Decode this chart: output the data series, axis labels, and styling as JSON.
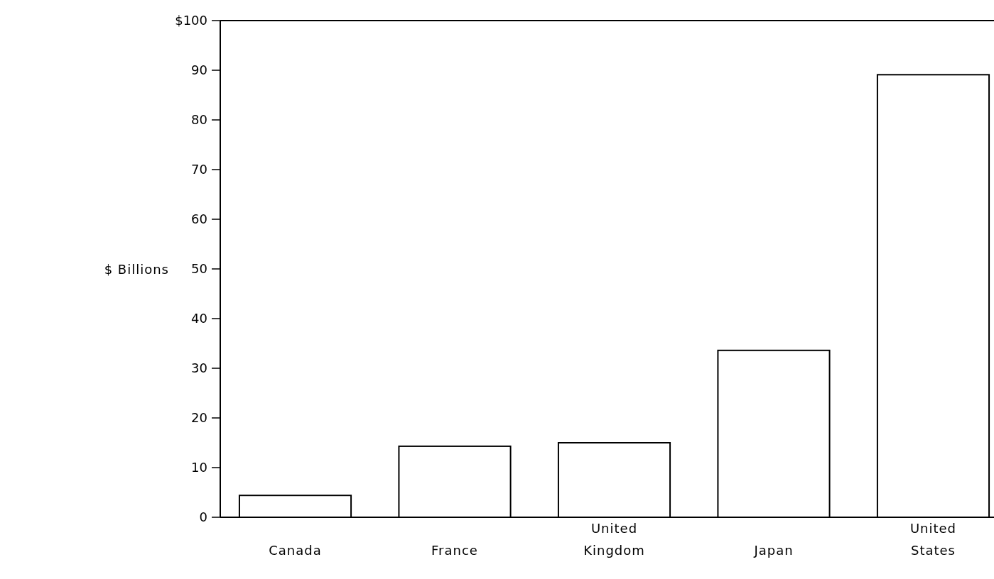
{
  "chart_data": {
    "type": "bar",
    "ylabel": "$ Billions",
    "categories": [
      "Canada",
      "France",
      "United Kingdom",
      "Japan",
      "United States"
    ],
    "values": [
      4.4,
      14.3,
      15,
      33.6,
      89.1
    ],
    "colors": [
      "#ffffff",
      "#ffffff",
      "#ffffff",
      "#ffffff",
      "#ffffff"
    ],
    "ylim": [
      0,
      100
    ],
    "yticks": [
      0,
      10,
      20,
      30,
      40,
      50,
      60,
      70,
      80,
      90,
      {
        "value": 100,
        "label": "$100"
      }
    ],
    "grid": false
  }
}
